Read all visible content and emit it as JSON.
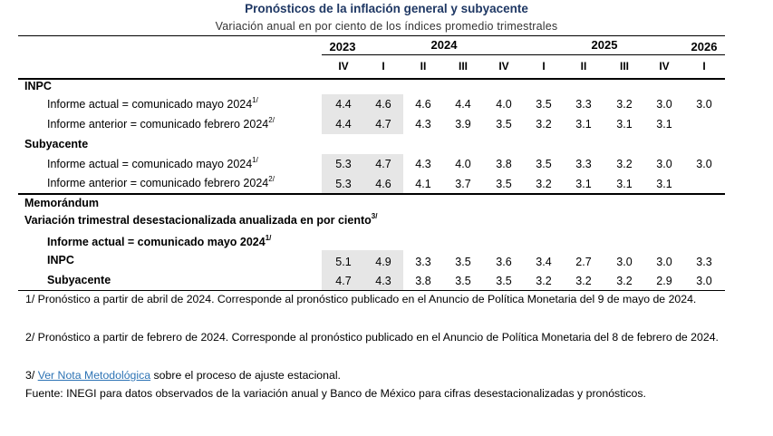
{
  "title": "Pronósticos de la inflación general y subyacente",
  "subtitle": "Variación anual en por ciento de los índices promedio trimestrales",
  "years": [
    "2023",
    "2024",
    "2025",
    "2026"
  ],
  "quarters": [
    "IV",
    "I",
    "II",
    "III",
    "IV",
    "I",
    "II",
    "III",
    "IV",
    "I"
  ],
  "sections": {
    "inpc": "INPC",
    "subyacente": "Subyacente",
    "memorandum": "Memorándum",
    "memo_title": "Variación trimestral desestacionalizada anualizada en por ciento",
    "memo_title_sup": "3/"
  },
  "labels": {
    "actual": "Informe actual = comunicado mayo 2024",
    "actual_sup": "1/",
    "anterior": "Informe anterior = comunicado febrero 2024",
    "anterior_sup": "2/",
    "memo_inpc": "INPC",
    "memo_sub": "Subyacente"
  },
  "rows": {
    "inpc_actual": [
      "4.4",
      "4.6",
      "4.6",
      "4.4",
      "4.0",
      "3.5",
      "3.3",
      "3.2",
      "3.0",
      "3.0"
    ],
    "inpc_anterior": [
      "4.4",
      "4.7",
      "4.3",
      "3.9",
      "3.5",
      "3.2",
      "3.1",
      "3.1",
      "3.1",
      ""
    ],
    "sub_actual": [
      "5.3",
      "4.7",
      "4.3",
      "4.0",
      "3.8",
      "3.5",
      "3.3",
      "3.2",
      "3.0",
      "3.0"
    ],
    "sub_anterior": [
      "5.3",
      "4.6",
      "4.1",
      "3.7",
      "3.5",
      "3.2",
      "3.1",
      "3.1",
      "3.1",
      ""
    ],
    "memo_inpc": [
      "5.1",
      "4.9",
      "3.3",
      "3.5",
      "3.6",
      "3.4",
      "2.7",
      "3.0",
      "3.0",
      "3.3"
    ],
    "memo_sub": [
      "4.7",
      "4.3",
      "3.8",
      "3.5",
      "3.5",
      "3.2",
      "3.2",
      "3.2",
      "2.9",
      "3.0"
    ]
  },
  "notes": {
    "n1": "1/ Pronóstico a partir de abril de 2024. Corresponde al pronóstico publicado en el Anuncio de Política Monetaria del 9 de mayo de 2024.",
    "n2": "2/ Pronóstico a partir de febrero de 2024. Corresponde al pronóstico publicado en el Anuncio de Política Monetaria del 8 de febrero de 2024.",
    "n3_prefix": "3/ ",
    "n3_link": "Ver Nota Metodológica",
    "n3_suffix": " sobre el proceso de ajuste estacional.",
    "fuente": "Fuente: INEGI para datos observados de la variación anual y Banco de México para cifras desestacionalizadas y pronósticos."
  }
}
